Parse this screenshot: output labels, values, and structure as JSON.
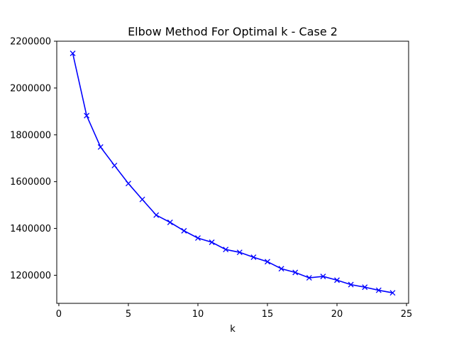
{
  "chart_data": {
    "type": "line",
    "title": "Elbow Method For Optimal k - Case 2",
    "xlabel": "k",
    "ylabel": "",
    "xlim": [
      -0.15,
      25.15
    ],
    "ylim": [
      1080000,
      2200000
    ],
    "x_ticks": [
      0,
      5,
      10,
      15,
      20,
      25
    ],
    "x_tick_labels": [
      "0",
      "5",
      "10",
      "15",
      "20",
      "25"
    ],
    "y_ticks": [
      1200000,
      1400000,
      1600000,
      1800000,
      2000000,
      2200000
    ],
    "y_tick_labels": [
      "1200000",
      "1400000",
      "1600000",
      "1800000",
      "2000000",
      "2200000"
    ],
    "grid": false,
    "series": [
      {
        "color": "#0000ff",
        "marker": "x",
        "x": [
          1,
          2,
          3,
          4,
          5,
          6,
          7,
          8,
          9,
          10,
          11,
          12,
          13,
          14,
          15,
          16,
          17,
          18,
          19,
          20,
          21,
          22,
          23,
          24
        ],
        "y": [
          2148000,
          1882000,
          1748000,
          1669000,
          1592000,
          1524000,
          1457000,
          1426000,
          1390000,
          1359000,
          1341000,
          1310000,
          1298000,
          1277000,
          1258000,
          1228000,
          1212000,
          1189000,
          1195000,
          1179000,
          1160000,
          1149000,
          1136000,
          1125000
        ]
      }
    ]
  }
}
